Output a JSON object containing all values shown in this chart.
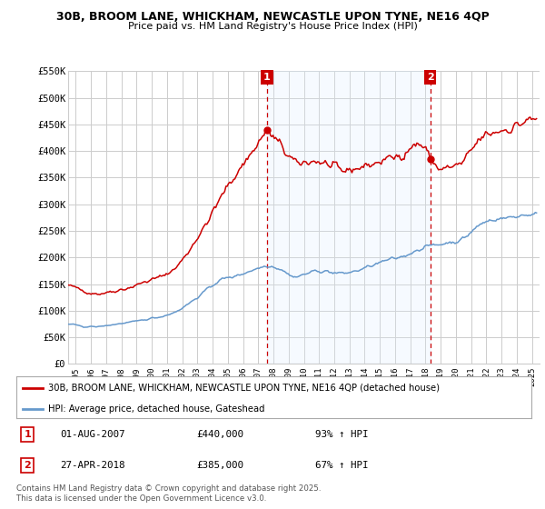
{
  "title1": "30B, BROOM LANE, WHICKHAM, NEWCASTLE UPON TYNE, NE16 4QP",
  "title2": "Price paid vs. HM Land Registry's House Price Index (HPI)",
  "ylabel_ticks": [
    "£0",
    "£50K",
    "£100K",
    "£150K",
    "£200K",
    "£250K",
    "£300K",
    "£350K",
    "£400K",
    "£450K",
    "£500K",
    "£550K"
  ],
  "ylim": [
    0,
    550000
  ],
  "ytick_vals": [
    0,
    50000,
    100000,
    150000,
    200000,
    250000,
    300000,
    350000,
    400000,
    450000,
    500000,
    550000
  ],
  "red_color": "#cc0000",
  "blue_color": "#6699cc",
  "shade_color": "#ddeeff",
  "marker1_date": 2007.58,
  "marker1_price": 440000,
  "marker2_date": 2018.32,
  "marker2_price": 385000,
  "annotation1": [
    "1",
    "01-AUG-2007",
    "£440,000",
    "93% ↑ HPI"
  ],
  "annotation2": [
    "2",
    "27-APR-2018",
    "£385,000",
    "67% ↑ HPI"
  ],
  "legend1": "30B, BROOM LANE, WHICKHAM, NEWCASTLE UPON TYNE, NE16 4QP (detached house)",
  "legend2": "HPI: Average price, detached house, Gateshead",
  "footer": "Contains HM Land Registry data © Crown copyright and database right 2025.\nThis data is licensed under the Open Government Licence v3.0.",
  "xlim_start": 1994.5,
  "xlim_end": 2025.5
}
